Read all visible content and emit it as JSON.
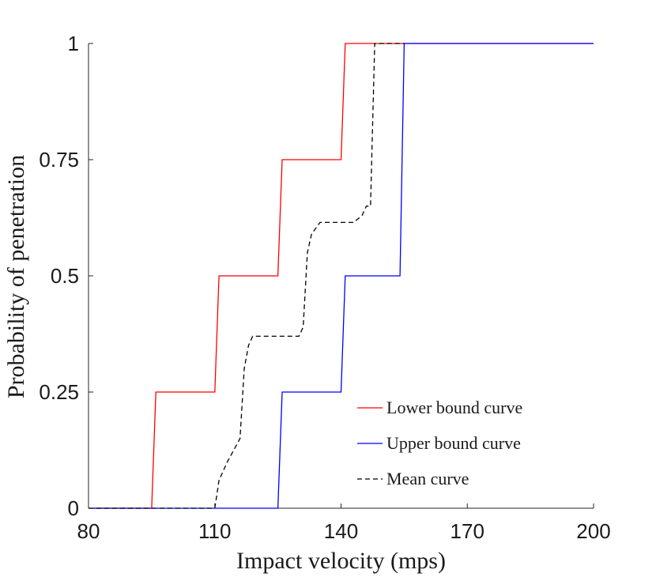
{
  "chart_data": {
    "type": "line",
    "title": "",
    "xlabel": "Impact velocity (mps)",
    "ylabel": "Probability of penetration",
    "xlim": [
      80,
      200
    ],
    "ylim": [
      0,
      1
    ],
    "xticks": [
      80,
      110,
      140,
      170,
      200
    ],
    "xtick_labels": [
      "80",
      "110",
      "140",
      "170",
      "200"
    ],
    "yticks": [
      0,
      0.25,
      0.5,
      0.75,
      1
    ],
    "ytick_labels": [
      "0",
      "0.25",
      "0.5",
      "0.75",
      "1"
    ],
    "grid": false,
    "legend_position": "bottom-right",
    "series": [
      {
        "name": "Lower bound curve",
        "color": "#ff0000",
        "dash": "solid",
        "x": [
          80,
          95,
          96,
          110,
          111,
          125,
          126,
          140,
          141,
          200
        ],
        "y": [
          0,
          0,
          0.25,
          0.25,
          0.5,
          0.5,
          0.75,
          0.75,
          1,
          1
        ]
      },
      {
        "name": "Upper bound curve",
        "color": "#0000ff",
        "dash": "solid",
        "x": [
          80,
          125,
          126,
          140,
          141,
          154,
          155,
          200
        ],
        "y": [
          0,
          0,
          0.25,
          0.25,
          0.5,
          0.5,
          1,
          1
        ]
      },
      {
        "name": "Mean curve",
        "color": "#000000",
        "dash": "dashed",
        "x": [
          80,
          110,
          111,
          113,
          116,
          117,
          118,
          119,
          130,
          131,
          132,
          133,
          135,
          143,
          145,
          146,
          147,
          148,
          155
        ],
        "y": [
          0,
          0,
          0.06,
          0.1,
          0.15,
          0.3,
          0.35,
          0.37,
          0.37,
          0.39,
          0.55,
          0.59,
          0.615,
          0.615,
          0.63,
          0.65,
          0.65,
          1,
          1
        ]
      }
    ]
  }
}
